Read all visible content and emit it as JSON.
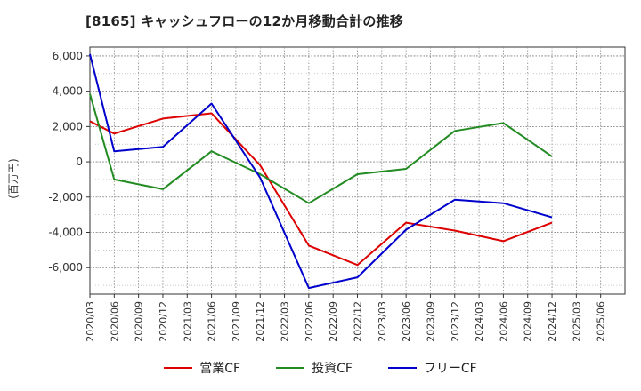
{
  "chart_data": {
    "type": "line",
    "title": "[8165]  キャッシュフローの12か月移動合計の推移",
    "ylabel": "(百万円)",
    "xlabel": "",
    "ylim": [
      -7500,
      6500
    ],
    "yticks": [
      6000,
      4000,
      2000,
      0,
      -2000,
      -4000,
      -6000
    ],
    "ytick_labels": [
      "6,000",
      "4,000",
      "2,000",
      "0",
      "-2,000",
      "-4,000",
      "-6,000"
    ],
    "x_ticks": [
      "2020/03",
      "2020/06",
      "2020/09",
      "2020/12",
      "2021/03",
      "2021/06",
      "2021/09",
      "2021/12",
      "2022/03",
      "2022/06",
      "2022/09",
      "2022/12",
      "2023/03",
      "2023/06",
      "2023/09",
      "2023/12",
      "2024/03",
      "2024/06",
      "2024/09",
      "2024/12",
      "2025/03",
      "2025/06"
    ],
    "grid": true,
    "legend_position": "bottom",
    "series": [
      {
        "name": "営業CF",
        "color": "#dd0000",
        "points": [
          [
            "2020/03",
            2300
          ],
          [
            "2020/06",
            1600
          ],
          [
            "2020/12",
            2450
          ],
          [
            "2021/06",
            2750
          ],
          [
            "2021/12",
            -200
          ],
          [
            "2022/06",
            -4750
          ],
          [
            "2022/12",
            -5850
          ],
          [
            "2023/06",
            -3450
          ],
          [
            "2023/12",
            -3900
          ],
          [
            "2024/06",
            -4500
          ],
          [
            "2024/12",
            -3450
          ]
        ]
      },
      {
        "name": "投資CF",
        "color": "#228b22",
        "points": [
          [
            "2020/03",
            3850
          ],
          [
            "2020/06",
            -1000
          ],
          [
            "2020/12",
            -1550
          ],
          [
            "2021/06",
            600
          ],
          [
            "2021/12",
            -700
          ],
          [
            "2022/06",
            -2350
          ],
          [
            "2022/12",
            -700
          ],
          [
            "2023/06",
            -400
          ],
          [
            "2023/12",
            1750
          ],
          [
            "2024/06",
            2200
          ],
          [
            "2024/12",
            300
          ]
        ]
      },
      {
        "name": "フリーCF",
        "color": "#0000cc",
        "points": [
          [
            "2020/03",
            6100
          ],
          [
            "2020/06",
            600
          ],
          [
            "2020/12",
            850
          ],
          [
            "2021/06",
            3300
          ],
          [
            "2021/12",
            -900
          ],
          [
            "2022/06",
            -7150
          ],
          [
            "2022/12",
            -6550
          ],
          [
            "2023/06",
            -3850
          ],
          [
            "2023/12",
            -2150
          ],
          [
            "2024/06",
            -2350
          ],
          [
            "2024/12",
            -3150
          ]
        ]
      }
    ]
  }
}
